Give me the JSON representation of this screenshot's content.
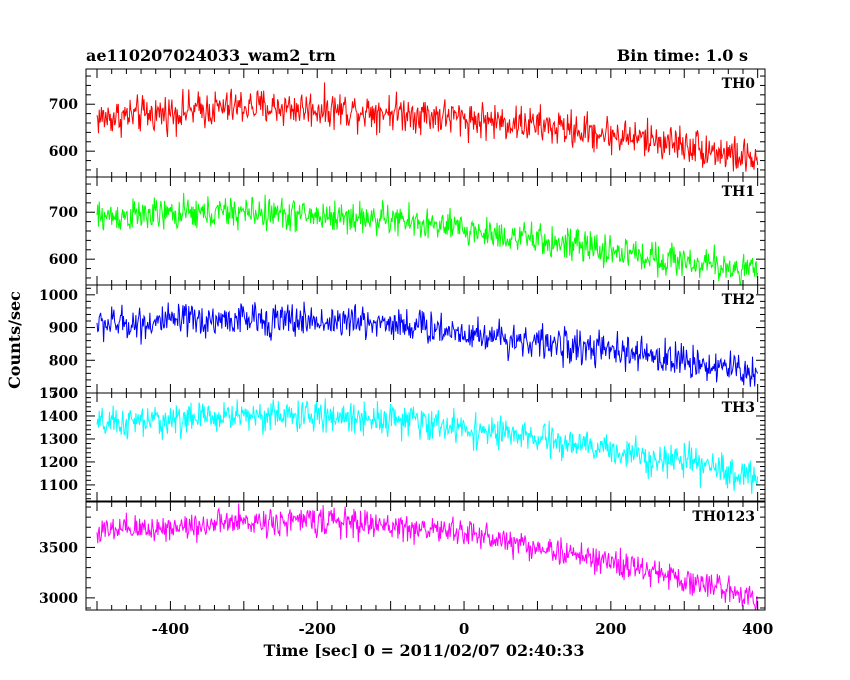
{
  "header": {
    "title": "ae110207024033_wam2_trn",
    "bin_time": "Bin time: 1.0 s"
  },
  "axes": {
    "ylabel": "Counts/sec",
    "xlabel": "Time [sec] 0 = 2011/02/07 02:40:33"
  },
  "chart_data": {
    "type": "line",
    "x_range": [
      -515,
      410
    ],
    "x_ticks": [
      -400,
      -200,
      0,
      200,
      400
    ],
    "x_step": 1.0,
    "panels": [
      {
        "name": "TH0",
        "color": "#ff0000",
        "y_range": [
          545,
          775
        ],
        "y_ticks": [
          600,
          700
        ],
        "trend": [
          [
            -500,
            670
          ],
          [
            -300,
            695
          ],
          [
            -100,
            685
          ],
          [
            100,
            655
          ],
          [
            300,
            615
          ],
          [
            400,
            580
          ]
        ],
        "noise_amp": 34
      },
      {
        "name": "TH1",
        "color": "#00ff00",
        "y_range": [
          545,
          775
        ],
        "y_ticks": [
          600,
          700
        ],
        "trend": [
          [
            -500,
            690
          ],
          [
            -300,
            700
          ],
          [
            -100,
            685
          ],
          [
            100,
            640
          ],
          [
            300,
            595
          ],
          [
            400,
            575
          ]
        ],
        "noise_amp": 30
      },
      {
        "name": "TH2",
        "color": "#0000ff",
        "y_range": [
          700,
          1030
        ],
        "y_ticks": [
          700,
          800,
          900,
          1000
        ],
        "trend": [
          [
            -500,
            910
          ],
          [
            -300,
            925
          ],
          [
            -100,
            915
          ],
          [
            100,
            855
          ],
          [
            300,
            800
          ],
          [
            400,
            760
          ]
        ],
        "noise_amp": 45
      },
      {
        "name": "TH3",
        "color": "#00ffff",
        "y_range": [
          1030,
          1500
        ],
        "y_ticks": [
          1100,
          1200,
          1300,
          1400,
          1500
        ],
        "trend": [
          [
            -500,
            1360
          ],
          [
            -300,
            1405
          ],
          [
            -100,
            1390
          ],
          [
            100,
            1300
          ],
          [
            300,
            1200
          ],
          [
            400,
            1130
          ]
        ],
        "noise_amp": 60
      },
      {
        "name": "TH0123",
        "color": "#ff00ff",
        "y_range": [
          2880,
          3950
        ],
        "y_ticks": [
          3000,
          3500
        ],
        "trend": [
          [
            -500,
            3650
          ],
          [
            -300,
            3750
          ],
          [
            -200,
            3770
          ],
          [
            0,
            3650
          ],
          [
            200,
            3350
          ],
          [
            400,
            3010
          ]
        ],
        "noise_amp": 120
      }
    ]
  }
}
